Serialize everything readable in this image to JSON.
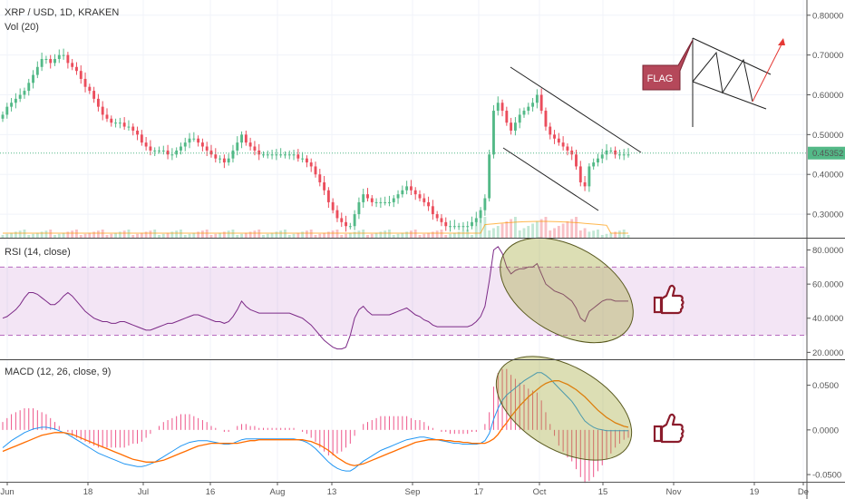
{
  "chart_data": [
    {
      "type": "candlestick",
      "title": "XRP / USD, 1D, KRAKEN",
      "volume_label": "Vol (20)",
      "price_axis": [
        "0.80000",
        "0.70000",
        "0.60000",
        "0.50000",
        "0.40000",
        "0.30000"
      ],
      "ylim": [
        0.25,
        0.82
      ],
      "last_price": "0.45352",
      "x_ticks": [
        "Jun",
        "18",
        "Jul",
        "16",
        "Aug",
        "13",
        "Sep",
        "17",
        "Oct",
        "15",
        "Nov",
        "19",
        "De"
      ],
      "close": [
        0.55,
        0.57,
        0.58,
        0.59,
        0.6,
        0.61,
        0.63,
        0.65,
        0.67,
        0.69,
        0.69,
        0.68,
        0.69,
        0.7,
        0.7,
        0.68,
        0.67,
        0.66,
        0.64,
        0.62,
        0.61,
        0.59,
        0.57,
        0.55,
        0.54,
        0.53,
        0.53,
        0.53,
        0.52,
        0.52,
        0.51,
        0.5,
        0.48,
        0.47,
        0.46,
        0.46,
        0.46,
        0.46,
        0.45,
        0.45,
        0.46,
        0.47,
        0.48,
        0.49,
        0.49,
        0.48,
        0.47,
        0.46,
        0.45,
        0.44,
        0.44,
        0.43,
        0.44,
        0.46,
        0.48,
        0.5,
        0.48,
        0.47,
        0.46,
        0.45,
        0.45,
        0.45,
        0.45,
        0.45,
        0.45,
        0.45,
        0.45,
        0.45,
        0.44,
        0.44,
        0.43,
        0.42,
        0.4,
        0.38,
        0.36,
        0.33,
        0.31,
        0.29,
        0.28,
        0.27,
        0.27,
        0.3,
        0.33,
        0.35,
        0.34,
        0.33,
        0.33,
        0.33,
        0.33,
        0.33,
        0.34,
        0.35,
        0.36,
        0.37,
        0.36,
        0.35,
        0.34,
        0.33,
        0.32,
        0.3,
        0.29,
        0.28,
        0.27,
        0.27,
        0.27,
        0.27,
        0.27,
        0.27,
        0.28,
        0.29,
        0.31,
        0.34,
        0.45,
        0.56,
        0.58,
        0.56,
        0.53,
        0.51,
        0.53,
        0.55,
        0.56,
        0.57,
        0.58,
        0.6,
        0.56,
        0.52,
        0.5,
        0.49,
        0.48,
        0.47,
        0.46,
        0.45,
        0.42,
        0.38,
        0.37,
        0.42,
        0.43,
        0.44,
        0.45,
        0.46,
        0.46,
        0.45,
        0.45,
        0.45,
        0.45
      ]
    },
    {
      "type": "line",
      "title": "RSI (14, close)",
      "axis": [
        "80.0000",
        "60.0000",
        "40.0000",
        "20.0000"
      ],
      "ylim": [
        17,
        84
      ],
      "band": [
        30,
        70
      ],
      "values": [
        40,
        41,
        43,
        45,
        48,
        52,
        55,
        55,
        54,
        52,
        50,
        48,
        48,
        50,
        53,
        55,
        53,
        50,
        47,
        44,
        42,
        40,
        39,
        38,
        38,
        37,
        37,
        38,
        38,
        37,
        36,
        35,
        34,
        33,
        33,
        34,
        35,
        36,
        37,
        37,
        38,
        39,
        40,
        41,
        42,
        42,
        41,
        40,
        39,
        38,
        38,
        37,
        38,
        41,
        45,
        50,
        47,
        45,
        44,
        43,
        43,
        43,
        43,
        43,
        43,
        43,
        43,
        42,
        41,
        40,
        38,
        36,
        33,
        30,
        27,
        25,
        23,
        22,
        22,
        23,
        30,
        40,
        45,
        47,
        44,
        42,
        42,
        42,
        42,
        42,
        43,
        44,
        45,
        46,
        44,
        42,
        41,
        39,
        38,
        36,
        35,
        35,
        35,
        35,
        35,
        35,
        35,
        35,
        36,
        38,
        41,
        47,
        62,
        80,
        82,
        78,
        70,
        66,
        68,
        69,
        69,
        70,
        70,
        72,
        66,
        60,
        58,
        56,
        55,
        54,
        52,
        50,
        46,
        40,
        38,
        44,
        46,
        48,
        50,
        51,
        51,
        50,
        50,
        50,
        50
      ]
    },
    {
      "type": "line",
      "title": "MACD (12, 26, close, 9)",
      "axis": [
        "0.0500",
        "0.0000",
        "-0.0500"
      ],
      "ylim": [
        -0.055,
        0.075
      ],
      "series": [
        {
          "values": [
            -0.02,
            -0.016,
            -0.012,
            -0.009,
            -0.006,
            -0.003,
            -0.001,
            0.001,
            0.002,
            0.003,
            0.003,
            0.002,
            0.001,
            -0.001,
            -0.003,
            -0.005,
            -0.008,
            -0.011,
            -0.014,
            -0.017,
            -0.02,
            -0.023,
            -0.026,
            -0.028,
            -0.03,
            -0.032,
            -0.034,
            -0.036,
            -0.038,
            -0.039,
            -0.04,
            -0.041,
            -0.041,
            -0.04,
            -0.038,
            -0.036,
            -0.033,
            -0.03,
            -0.027,
            -0.024,
            -0.021,
            -0.018,
            -0.016,
            -0.014,
            -0.013,
            -0.012,
            -0.012,
            -0.012,
            -0.013,
            -0.014,
            -0.015,
            -0.016,
            -0.016,
            -0.015,
            -0.013,
            -0.011,
            -0.01,
            -0.01,
            -0.01,
            -0.01,
            -0.01,
            -0.01,
            -0.01,
            -0.01,
            -0.01,
            -0.01,
            -0.01,
            -0.01,
            -0.011,
            -0.012,
            -0.014,
            -0.017,
            -0.021,
            -0.026,
            -0.031,
            -0.036,
            -0.04,
            -0.043,
            -0.045,
            -0.046,
            -0.046,
            -0.043,
            -0.039,
            -0.035,
            -0.032,
            -0.029,
            -0.026,
            -0.023,
            -0.021,
            -0.019,
            -0.017,
            -0.015,
            -0.013,
            -0.011,
            -0.01,
            -0.009,
            -0.008,
            -0.008,
            -0.009,
            -0.01,
            -0.011,
            -0.012,
            -0.013,
            -0.014,
            -0.015,
            -0.015,
            -0.016,
            -0.016,
            -0.016,
            -0.016,
            -0.015,
            -0.012,
            -0.004,
            0.012,
            0.024,
            0.033,
            0.039,
            0.043,
            0.047,
            0.051,
            0.055,
            0.058,
            0.061,
            0.064,
            0.064,
            0.061,
            0.057,
            0.052,
            0.047,
            0.042,
            0.037,
            0.032,
            0.025,
            0.017,
            0.01,
            0.006,
            0.003,
            0.001,
            0.0,
            -0.001,
            -0.001,
            -0.001,
            -0.001,
            -0.001,
            -0.001
          ]
        },
        {
          "values": [
            -0.024,
            -0.022,
            -0.02,
            -0.018,
            -0.016,
            -0.014,
            -0.012,
            -0.01,
            -0.008,
            -0.006,
            -0.005,
            -0.004,
            -0.003,
            -0.003,
            -0.003,
            -0.004,
            -0.005,
            -0.007,
            -0.009,
            -0.011,
            -0.013,
            -0.015,
            -0.017,
            -0.019,
            -0.021,
            -0.023,
            -0.025,
            -0.027,
            -0.029,
            -0.031,
            -0.033,
            -0.034,
            -0.035,
            -0.036,
            -0.036,
            -0.036,
            -0.035,
            -0.034,
            -0.032,
            -0.03,
            -0.028,
            -0.026,
            -0.024,
            -0.022,
            -0.02,
            -0.018,
            -0.017,
            -0.016,
            -0.015,
            -0.015,
            -0.015,
            -0.015,
            -0.015,
            -0.015,
            -0.015,
            -0.014,
            -0.013,
            -0.012,
            -0.012,
            -0.011,
            -0.011,
            -0.011,
            -0.011,
            -0.011,
            -0.011,
            -0.011,
            -0.011,
            -0.011,
            -0.011,
            -0.011,
            -0.012,
            -0.013,
            -0.015,
            -0.017,
            -0.02,
            -0.023,
            -0.027,
            -0.031,
            -0.034,
            -0.037,
            -0.039,
            -0.04,
            -0.039,
            -0.038,
            -0.036,
            -0.034,
            -0.032,
            -0.03,
            -0.028,
            -0.026,
            -0.024,
            -0.022,
            -0.02,
            -0.018,
            -0.016,
            -0.014,
            -0.013,
            -0.012,
            -0.011,
            -0.011,
            -0.011,
            -0.011,
            -0.012,
            -0.012,
            -0.013,
            -0.013,
            -0.014,
            -0.014,
            -0.015,
            -0.015,
            -0.015,
            -0.015,
            -0.013,
            -0.01,
            -0.005,
            0.002,
            0.008,
            0.015,
            0.021,
            0.027,
            0.032,
            0.037,
            0.041,
            0.045,
            0.049,
            0.052,
            0.054,
            0.055,
            0.055,
            0.053,
            0.051,
            0.048,
            0.045,
            0.041,
            0.037,
            0.032,
            0.027,
            0.022,
            0.018,
            0.014,
            0.011,
            0.008,
            0.006,
            0.004,
            0.003
          ]
        }
      ]
    }
  ],
  "annotation": {
    "flag_label": "FLAG"
  },
  "colors": {
    "up": "#53b987",
    "down": "#eb4d5c",
    "rsi": "#7c2a87",
    "macd": "#2196f3",
    "signal": "#ff6d00"
  }
}
